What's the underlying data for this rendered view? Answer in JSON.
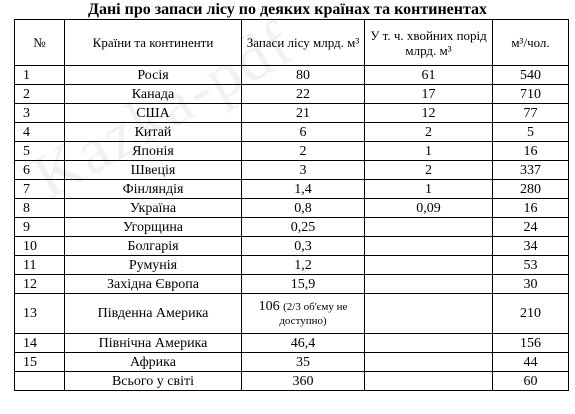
{
  "title": "Дані про запаси лісу по деяких країнах та континентах",
  "watermark": "Kazka-pdf",
  "columns": {
    "num": "№",
    "name": "Країни та континенти",
    "reserves": "Запаси лісу млрд. м³",
    "conifer": "У т. ч. хвойних порід млрд. м³",
    "per_capita": "м³/чол."
  },
  "rows": [
    {
      "num": "1",
      "name": "Росія",
      "reserves": "80",
      "conifer": "61",
      "per_capita": "540"
    },
    {
      "num": "2",
      "name": "Канада",
      "reserves": "22",
      "conifer": "17",
      "per_capita": "710"
    },
    {
      "num": "3",
      "name": "США",
      "reserves": "21",
      "conifer": "12",
      "per_capita": "77"
    },
    {
      "num": "4",
      "name": "Китай",
      "reserves": "6",
      "conifer": "2",
      "per_capita": "5"
    },
    {
      "num": "5",
      "name": "Японія",
      "reserves": "2",
      "conifer": "1",
      "per_capita": "16"
    },
    {
      "num": "6",
      "name": "Швеція",
      "reserves": "3",
      "conifer": "2",
      "per_capita": "337"
    },
    {
      "num": "7",
      "name": "Фінляндія",
      "reserves": "1,4",
      "conifer": "1",
      "per_capita": "280"
    },
    {
      "num": "8",
      "name": "Україна",
      "reserves": "0,8",
      "conifer": "0,09",
      "per_capita": "16"
    },
    {
      "num": "9",
      "name": "Угорщина",
      "reserves": "0,25",
      "conifer": "",
      "per_capita": "24"
    },
    {
      "num": "10",
      "name": "Болгарія",
      "reserves": "0,3",
      "conifer": "",
      "per_capita": "34"
    },
    {
      "num": "11",
      "name": "Румунія",
      "reserves": "1,2",
      "conifer": "",
      "per_capita": "53"
    },
    {
      "num": "12",
      "name": "Західна Європа",
      "reserves": "15,9",
      "conifer": "",
      "per_capita": "30"
    },
    {
      "num": "13",
      "name": "Південна Америка",
      "reserves": "106",
      "reserves_note": "(2/3 об'єму не доступно)",
      "conifer": "",
      "per_capita": "210"
    },
    {
      "num": "14",
      "name": "Північна Америка",
      "reserves": "46,4",
      "conifer": "",
      "per_capita": "156"
    },
    {
      "num": "15",
      "name": "Африка",
      "reserves": "35",
      "conifer": "",
      "per_capita": "44"
    }
  ],
  "total": {
    "num": "",
    "name": "Всього у світі",
    "reserves": "360",
    "conifer": "",
    "per_capita": "60"
  }
}
